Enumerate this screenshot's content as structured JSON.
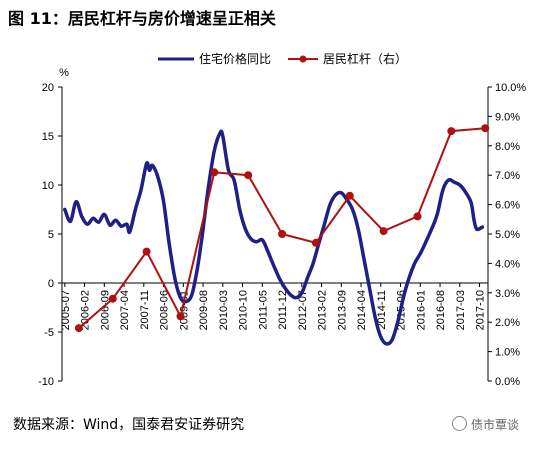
{
  "title": "图 11：居民杠杆与房价增速呈正相关",
  "source": "数据来源：Wind，国泰君安证券研究",
  "watermark": "债市覃谈",
  "chart_data": {
    "type": "line",
    "left_axis_unit": "%",
    "ylim_left": [
      -10,
      20
    ],
    "ylim_right": [
      0.0,
      10.0
    ],
    "left_ticks": [
      "-10",
      "-5",
      "0",
      "5",
      "10",
      "15",
      "20"
    ],
    "right_ticks": [
      "0.0%",
      "1.0%",
      "2.0%",
      "3.0%",
      "4.0%",
      "5.0%",
      "6.0%",
      "7.0%",
      "8.0%",
      "9.0%",
      "10.0%"
    ],
    "x_ticks": [
      "2005-07",
      "2006-02",
      "2006-09",
      "2007-04",
      "2007-11",
      "2008-06",
      "2009-01",
      "2009-08",
      "2010-03",
      "2010-10",
      "2011-05",
      "2011-12",
      "2012-07",
      "2013-02",
      "2013-09",
      "2014-04",
      "2014-11",
      "2015-06",
      "2016-01",
      "2016-08",
      "2017-03",
      "2017-10"
    ],
    "grid": false,
    "legend_position": "top",
    "series": [
      {
        "name": "住宅价格同比",
        "axis": "left",
        "color": "#1f1f8a",
        "points": [
          [
            "2005-07",
            7.5
          ],
          [
            "2005-09",
            6.3
          ],
          [
            "2005-11",
            8.3
          ],
          [
            "2006-01",
            6.8
          ],
          [
            "2006-03",
            6.0
          ],
          [
            "2006-05",
            6.6
          ],
          [
            "2006-07",
            6.2
          ],
          [
            "2006-09",
            7.0
          ],
          [
            "2006-11",
            5.9
          ],
          [
            "2007-01",
            6.4
          ],
          [
            "2007-03",
            5.8
          ],
          [
            "2007-05",
            6.0
          ],
          [
            "2007-06",
            5.2
          ],
          [
            "2007-08",
            7.5
          ],
          [
            "2007-10",
            9.5
          ],
          [
            "2007-12",
            12.2
          ],
          [
            "2008-01",
            11.5
          ],
          [
            "2008-02",
            12.0
          ],
          [
            "2008-04",
            10.8
          ],
          [
            "2008-06",
            8.3
          ],
          [
            "2008-08",
            4.0
          ],
          [
            "2008-10",
            0.5
          ],
          [
            "2008-12",
            -1.5
          ],
          [
            "2009-02",
            -1.9
          ],
          [
            "2009-04",
            -1.2
          ],
          [
            "2009-06",
            1.5
          ],
          [
            "2009-08",
            5.5
          ],
          [
            "2009-10",
            10.0
          ],
          [
            "2009-12",
            13.5
          ],
          [
            "2010-02",
            15.3
          ],
          [
            "2010-03",
            15.0
          ],
          [
            "2010-05",
            11.5
          ],
          [
            "2010-07",
            10.5
          ],
          [
            "2010-09",
            7.5
          ],
          [
            "2010-11",
            5.5
          ],
          [
            "2011-01",
            4.5
          ],
          [
            "2011-03",
            4.2
          ],
          [
            "2011-05",
            4.4
          ],
          [
            "2011-07",
            3.2
          ],
          [
            "2011-09",
            1.8
          ],
          [
            "2011-11",
            0.5
          ],
          [
            "2012-01",
            -0.5
          ],
          [
            "2012-03",
            -1.2
          ],
          [
            "2012-05",
            -1.5
          ],
          [
            "2012-07",
            -1.0
          ],
          [
            "2012-09",
            0.5
          ],
          [
            "2012-11",
            2.0
          ],
          [
            "2013-01",
            4.0
          ],
          [
            "2013-03",
            6.0
          ],
          [
            "2013-05",
            8.0
          ],
          [
            "2013-07",
            9.0
          ],
          [
            "2013-09",
            9.2
          ],
          [
            "2013-11",
            8.5
          ],
          [
            "2014-01",
            7.5
          ],
          [
            "2014-03",
            5.5
          ],
          [
            "2014-05",
            2.5
          ],
          [
            "2014-07",
            -0.5
          ],
          [
            "2014-09",
            -3.5
          ],
          [
            "2014-11",
            -5.5
          ],
          [
            "2015-01",
            -6.2
          ],
          [
            "2015-03",
            -5.8
          ],
          [
            "2015-05",
            -4.0
          ],
          [
            "2015-07",
            -1.5
          ],
          [
            "2015-09",
            0.5
          ],
          [
            "2015-11",
            2.0
          ],
          [
            "2016-01",
            3.0
          ],
          [
            "2016-03",
            4.2
          ],
          [
            "2016-05",
            5.5
          ],
          [
            "2016-07",
            7.0
          ],
          [
            "2016-09",
            9.5
          ],
          [
            "2016-11",
            10.5
          ],
          [
            "2017-01",
            10.3
          ],
          [
            "2017-03",
            10.0
          ],
          [
            "2017-05",
            9.3
          ],
          [
            "2017-07",
            8.2
          ],
          [
            "2017-08",
            6.5
          ],
          [
            "2017-09",
            5.5
          ],
          [
            "2017-11",
            5.7
          ]
        ]
      },
      {
        "name": "居民杠杆（右）",
        "axis": "right",
        "color": "#b01010",
        "points": [
          [
            "2005-12",
            1.8
          ],
          [
            "2006-12",
            2.8
          ],
          [
            "2007-12",
            4.4
          ],
          [
            "2008-12",
            2.2
          ],
          [
            "2009-12",
            7.1
          ],
          [
            "2010-12",
            7.0
          ],
          [
            "2011-12",
            5.0
          ],
          [
            "2012-12",
            4.7
          ],
          [
            "2013-12",
            6.3
          ],
          [
            "2014-12",
            5.1
          ],
          [
            "2015-12",
            5.6
          ],
          [
            "2016-12",
            8.5
          ],
          [
            "2017-12",
            8.6
          ]
        ]
      }
    ]
  }
}
